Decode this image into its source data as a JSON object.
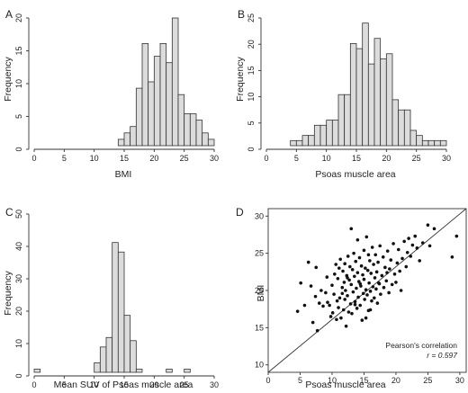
{
  "colors": {
    "bar_fill": "#dcdcdc",
    "bar_stroke": "#333333",
    "axis": "#333333",
    "point": "#111111"
  },
  "chart_data": [
    {
      "panel": "A",
      "type": "bar",
      "xlabel": "BMI",
      "ylabel": "Frequency",
      "xlim": [
        0,
        30
      ],
      "ylim": [
        0,
        20
      ],
      "xticks": [
        "0",
        "5",
        "10",
        "15",
        "20",
        "25",
        "30"
      ],
      "yticks": [
        "0",
        "5",
        "10",
        "15",
        "20"
      ],
      "bin_edges": [
        14,
        15,
        16,
        17,
        18,
        19,
        20,
        21,
        22,
        23,
        24,
        25,
        26,
        27,
        28,
        29,
        30
      ],
      "values": [
        1,
        2,
        3,
        9,
        16,
        10,
        14,
        16,
        13,
        20,
        8,
        5,
        5,
        4,
        2,
        1
      ]
    },
    {
      "panel": "B",
      "type": "bar",
      "xlabel": "Psoas muscle area",
      "ylabel": "Frequency",
      "xlim": [
        0,
        30
      ],
      "ylim": [
        0,
        25
      ],
      "xticks": [
        "0",
        "5",
        "10",
        "15",
        "20",
        "25",
        "30"
      ],
      "yticks": [
        "0",
        "5",
        "10",
        "15",
        "20",
        "25"
      ],
      "bin_edges": [
        4,
        5,
        6,
        7,
        8,
        9,
        10,
        11,
        12,
        13,
        14,
        15,
        16,
        17,
        18,
        19,
        20,
        21,
        22,
        23,
        24,
        25,
        26,
        27,
        28,
        29,
        30
      ],
      "values": [
        1,
        1,
        2,
        2,
        4,
        4,
        5,
        5,
        10,
        10,
        20,
        19,
        24,
        16,
        21,
        17,
        18,
        9,
        7,
        7,
        3,
        2,
        1,
        1,
        1,
        1
      ]
    },
    {
      "panel": "C",
      "type": "bar",
      "xlabel": "Mean SUV of Psoas muscle area",
      "ylabel": "Frequency",
      "xlim": [
        0,
        30
      ],
      "ylim": [
        0,
        50
      ],
      "xticks": [
        "0",
        "5",
        "10",
        "15",
        "20",
        "25",
        "30"
      ],
      "yticks": [
        "0",
        "10",
        "20",
        "30",
        "40",
        "50"
      ],
      "bin_edges": [
        0,
        1,
        2,
        3,
        4,
        5,
        6,
        7,
        8,
        9,
        10,
        11,
        12,
        13,
        14,
        15,
        16,
        17,
        18,
        19,
        20,
        21,
        22,
        23,
        24,
        25,
        26,
        27,
        28,
        29,
        30
      ],
      "values": [
        1,
        0,
        0,
        0,
        0,
        0,
        0,
        0,
        0,
        0,
        3,
        8,
        11,
        41,
        38,
        18,
        10,
        1,
        0,
        0,
        0,
        0,
        1,
        0,
        0,
        1,
        0,
        0,
        0,
        0
      ]
    },
    {
      "panel": "D",
      "type": "scatter",
      "xlabel": "Psoas muscle area",
      "ylabel": "BMI",
      "xlim": [
        0,
        31
      ],
      "ylim": [
        9,
        31
      ],
      "xticks": [
        "0",
        "5",
        "10",
        "15",
        "20",
        "25",
        "30"
      ],
      "yticks": [
        "10",
        "15",
        "20",
        "25",
        "30"
      ],
      "annotation": {
        "line1": "Pearson's correlation",
        "line2": "r = 0.597"
      },
      "reference_line": {
        "x": [
          0,
          31
        ],
        "y": [
          9,
          31
        ]
      },
      "points": [
        [
          4.6,
          17.2
        ],
        [
          5.1,
          21.0
        ],
        [
          5.7,
          18.0
        ],
        [
          6.3,
          23.8
        ],
        [
          6.7,
          20.6
        ],
        [
          7.0,
          15.7
        ],
        [
          7.4,
          19.2
        ],
        [
          7.5,
          23.1
        ],
        [
          7.7,
          14.6
        ],
        [
          8.0,
          18.3
        ],
        [
          8.3,
          20.0
        ],
        [
          8.6,
          17.9
        ],
        [
          9.0,
          19.7
        ],
        [
          9.2,
          21.8
        ],
        [
          9.3,
          18.4
        ],
        [
          9.6,
          18.0
        ],
        [
          9.8,
          16.5
        ],
        [
          10.0,
          20.7
        ],
        [
          10.1,
          17.0
        ],
        [
          10.3,
          19.5
        ],
        [
          10.4,
          22.2
        ],
        [
          10.6,
          23.5
        ],
        [
          10.8,
          18.6
        ],
        [
          10.9,
          21.6
        ],
        [
          11.0,
          17.7
        ],
        [
          11.1,
          23.0
        ],
        [
          11.2,
          19.0
        ],
        [
          11.3,
          24.2
        ],
        [
          11.4,
          16.3
        ],
        [
          11.6,
          20.4
        ],
        [
          11.7,
          22.6
        ],
        [
          11.8,
          17.4
        ],
        [
          11.9,
          21.1
        ],
        [
          12.0,
          18.8
        ],
        [
          12.0,
          23.6
        ],
        [
          12.1,
          20.0
        ],
        [
          12.2,
          15.2
        ],
        [
          12.3,
          22.0
        ],
        [
          12.4,
          19.3
        ],
        [
          12.5,
          24.6
        ],
        [
          12.6,
          17.1
        ],
        [
          12.7,
          21.4
        ],
        [
          12.8,
          23.2
        ],
        [
          12.9,
          18.2
        ],
        [
          13.0,
          20.8
        ],
        [
          13.0,
          28.3
        ],
        [
          13.1,
          16.9
        ],
        [
          13.2,
          22.8
        ],
        [
          13.3,
          19.8
        ],
        [
          13.4,
          25.0
        ],
        [
          13.5,
          21.9
        ],
        [
          13.6,
          18.5
        ],
        [
          13.7,
          23.9
        ],
        [
          13.8,
          20.3
        ],
        [
          13.9,
          17.6
        ],
        [
          14.0,
          22.4
        ],
        [
          14.0,
          26.8
        ],
        [
          14.1,
          19.1
        ],
        [
          14.2,
          21.2
        ],
        [
          14.3,
          24.4
        ],
        [
          14.4,
          18.0
        ],
        [
          14.5,
          20.6
        ],
        [
          14.6,
          23.3
        ],
        [
          14.7,
          16.0
        ],
        [
          14.8,
          22.1
        ],
        [
          14.9,
          19.6
        ],
        [
          15.0,
          25.4
        ],
        [
          15.0,
          21.5
        ],
        [
          15.1,
          18.8
        ],
        [
          15.2,
          23.0
        ],
        [
          15.3,
          20.1
        ],
        [
          15.4,
          27.2
        ],
        [
          15.5,
          19.4
        ],
        [
          15.6,
          22.7
        ],
        [
          15.7,
          17.3
        ],
        [
          15.8,
          21.0
        ],
        [
          15.9,
          24.0
        ],
        [
          16.0,
          19.9
        ],
        [
          16.1,
          22.3
        ],
        [
          16.2,
          18.6
        ],
        [
          16.3,
          25.8
        ],
        [
          16.4,
          20.5
        ],
        [
          16.5,
          23.5
        ],
        [
          16.6,
          19.0
        ],
        [
          16.7,
          21.7
        ],
        [
          16.8,
          24.8
        ],
        [
          16.9,
          20.2
        ],
        [
          17.0,
          22.5
        ],
        [
          17.1,
          18.3
        ],
        [
          17.2,
          23.8
        ],
        [
          17.4,
          20.9
        ],
        [
          17.5,
          26.0
        ],
        [
          17.6,
          19.5
        ],
        [
          17.8,
          22.0
        ],
        [
          18.0,
          24.5
        ],
        [
          18.1,
          20.4
        ],
        [
          18.3,
          23.1
        ],
        [
          18.5,
          21.3
        ],
        [
          18.7,
          25.3
        ],
        [
          18.9,
          19.7
        ],
        [
          19.0,
          22.9
        ],
        [
          19.2,
          24.1
        ],
        [
          19.4,
          20.8
        ],
        [
          19.6,
          26.3
        ],
        [
          19.8,
          22.2
        ],
        [
          20.0,
          21.1
        ],
        [
          20.2,
          23.7
        ],
        [
          20.4,
          25.5
        ],
        [
          20.6,
          22.6
        ],
        [
          20.8,
          20.0
        ],
        [
          21.0,
          24.3
        ],
        [
          21.3,
          26.6
        ],
        [
          21.6,
          23.2
        ],
        [
          21.8,
          25.1
        ],
        [
          22.0,
          27.0
        ],
        [
          22.3,
          24.6
        ],
        [
          22.6,
          26.1
        ],
        [
          23.0,
          27.3
        ],
        [
          23.3,
          25.7
        ],
        [
          23.7,
          24.0
        ],
        [
          24.2,
          26.4
        ],
        [
          25.0,
          28.8
        ],
        [
          25.3,
          26.0
        ],
        [
          26.0,
          28.3
        ],
        [
          28.8,
          24.5
        ],
        [
          29.5,
          27.3
        ],
        [
          15.3,
          16.3
        ],
        [
          13.6,
          18.1
        ],
        [
          11.6,
          19.6
        ],
        [
          16.0,
          17.4
        ],
        [
          10.7,
          16.1
        ],
        [
          14.4,
          20.9
        ],
        [
          12.4,
          21.7
        ],
        [
          17.3,
          21.0
        ],
        [
          18.6,
          22.4
        ],
        [
          15.7,
          24.8
        ]
      ]
    }
  ]
}
